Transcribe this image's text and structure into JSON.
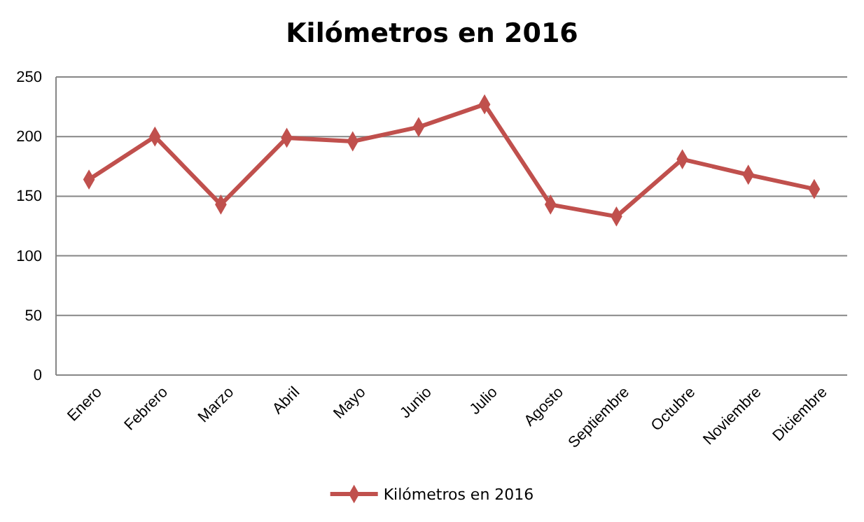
{
  "chart_data": {
    "type": "line",
    "title": "Kilómetros en 2016",
    "categories": [
      "Enero",
      "Febrero",
      "Marzo",
      "Abril",
      "Mayo",
      "Junio",
      "Julio",
      "Agosto",
      "Septiembre",
      "Octubre",
      "Noviembre",
      "Diciembre"
    ],
    "series": [
      {
        "name": "Kilómetros en 2016",
        "color": "#c0504d",
        "values": [
          164,
          200,
          143,
          199,
          196,
          208,
          227,
          143,
          133,
          181,
          168,
          156
        ]
      }
    ],
    "ylim": [
      0,
      250
    ],
    "yticks": [
      0,
      50,
      100,
      150,
      200,
      250
    ],
    "grid": "y",
    "legend": "bottom",
    "marker": "diamond",
    "line_style": "solid"
  }
}
